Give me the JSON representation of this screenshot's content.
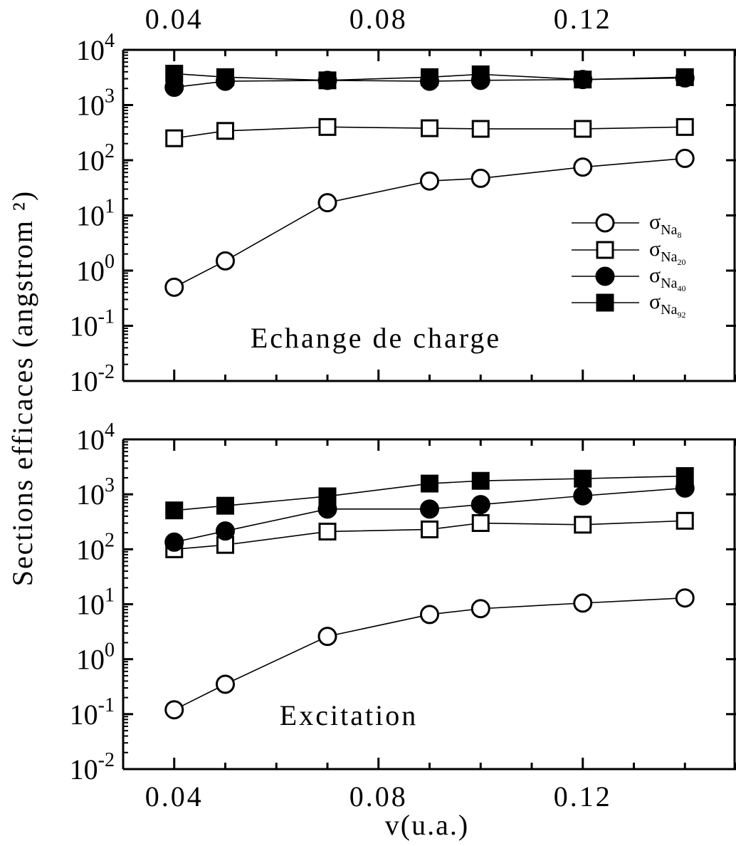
{
  "figure": {
    "ylabel": "Sections efficaces (angstrom ²)",
    "xlabel": "v(u.a.)"
  },
  "chart_data": [
    {
      "type": "line",
      "panel": "top",
      "annotation": "Echange de charge",
      "xlim": [
        0.03,
        0.15
      ],
      "x_ticks": [
        "0.04",
        "0.08",
        "0.12"
      ],
      "x_tick_values": [
        0.04,
        0.08,
        0.12
      ],
      "ylim": [
        0.01,
        10000
      ],
      "yscale": "log",
      "y_ticks": [
        {
          "base": "10",
          "exp": "4",
          "value": 10000
        },
        {
          "base": "10",
          "exp": "3",
          "value": 1000
        },
        {
          "base": "10",
          "exp": "2",
          "value": 100
        },
        {
          "base": "10",
          "exp": "1",
          "value": 10
        },
        {
          "base": "10",
          "exp": "0",
          "value": 1
        },
        {
          "base": "10",
          "exp": "-1",
          "value": 0.1
        },
        {
          "base": "10",
          "exp": "-2",
          "value": 0.01
        }
      ],
      "grid": false,
      "legend_position": "right",
      "x": [
        0.04,
        0.05,
        0.07,
        0.09,
        0.1,
        0.12,
        0.14
      ],
      "series": [
        {
          "symbol": "σ",
          "sub": "Na",
          "subsub": "8",
          "marker": "circle-open",
          "values": [
            0.5,
            1.5,
            17,
            42,
            47,
            75,
            108
          ]
        },
        {
          "symbol": "σ",
          "sub": "Na",
          "subsub": "20",
          "marker": "square-open",
          "values": [
            250,
            340,
            400,
            380,
            370,
            370,
            400
          ]
        },
        {
          "symbol": "σ",
          "sub": "Na",
          "subsub": "40",
          "marker": "circle-filled",
          "values": [
            2100,
            2700,
            2800,
            2700,
            2800,
            2900,
            3100
          ]
        },
        {
          "symbol": "σ",
          "sub": "Na",
          "subsub": "92",
          "marker": "square-filled",
          "values": [
            3700,
            3200,
            2800,
            3200,
            3600,
            2900,
            3200
          ]
        }
      ]
    },
    {
      "type": "line",
      "panel": "bottom",
      "annotation": "Excitation",
      "xlim": [
        0.03,
        0.15
      ],
      "x_ticks": [
        "0.04",
        "0.08",
        "0.12"
      ],
      "x_tick_values": [
        0.04,
        0.08,
        0.12
      ],
      "ylim": [
        0.01,
        10000
      ],
      "yscale": "log",
      "y_ticks": [
        {
          "base": "10",
          "exp": "4",
          "value": 10000
        },
        {
          "base": "10",
          "exp": "3",
          "value": 1000
        },
        {
          "base": "10",
          "exp": "2",
          "value": 100
        },
        {
          "base": "10",
          "exp": "1",
          "value": 10
        },
        {
          "base": "10",
          "exp": "0",
          "value": 1
        },
        {
          "base": "10",
          "exp": "-1",
          "value": 0.1
        },
        {
          "base": "10",
          "exp": "-2",
          "value": 0.01
        }
      ],
      "grid": false,
      "x": [
        0.04,
        0.05,
        0.07,
        0.09,
        0.1,
        0.12,
        0.14
      ],
      "series": [
        {
          "symbol": "σ",
          "sub": "Na",
          "subsub": "8",
          "marker": "circle-open",
          "values": [
            0.12,
            0.35,
            2.6,
            6.5,
            8.3,
            10.5,
            13
          ]
        },
        {
          "symbol": "σ",
          "sub": "Na",
          "subsub": "20",
          "marker": "square-open",
          "values": [
            100,
            120,
            210,
            230,
            300,
            280,
            330
          ]
        },
        {
          "symbol": "σ",
          "sub": "Na",
          "subsub": "40",
          "marker": "circle-filled",
          "values": [
            135,
            215,
            540,
            540,
            650,
            940,
            1300
          ]
        },
        {
          "symbol": "σ",
          "sub": "Na",
          "subsub": "92",
          "marker": "square-filled",
          "values": [
            510,
            620,
            920,
            1570,
            1760,
            1930,
            2150
          ]
        }
      ]
    }
  ]
}
